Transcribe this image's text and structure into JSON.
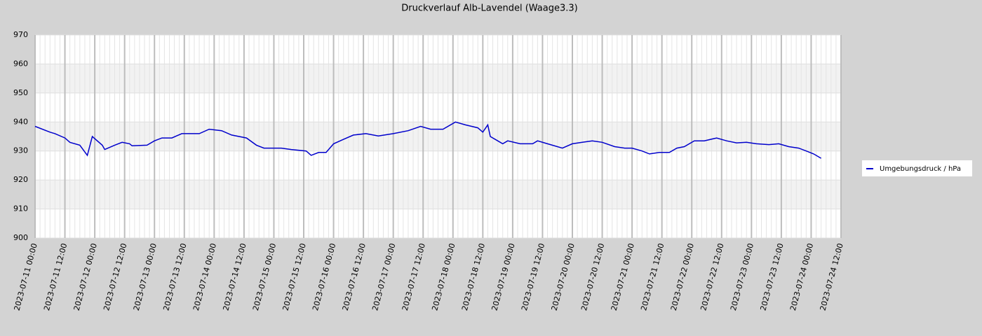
{
  "chart_data": {
    "type": "line",
    "title": "Druckverlauf Alb-Lavendel (Waage3.3)",
    "x": [
      "2023-07-11 00:00",
      "2023-07-11 06:00",
      "2023-07-11 08:00",
      "2023-07-11 12:00",
      "2023-07-11 14:00",
      "2023-07-11 18:00",
      "2023-07-11 21:00",
      "2023-07-11 23:00",
      "2023-07-12 03:00",
      "2023-07-12 04:00",
      "2023-07-12 08:00",
      "2023-07-12 11:00",
      "2023-07-12 14:00",
      "2023-07-12 15:00",
      "2023-07-12 21:00",
      "2023-07-13 00:00",
      "2023-07-13 03:00",
      "2023-07-13 07:00",
      "2023-07-13 11:00",
      "2023-07-13 15:00",
      "2023-07-13 18:00",
      "2023-07-13 22:00",
      "2023-07-14 03:00",
      "2023-07-14 07:00",
      "2023-07-14 13:00",
      "2023-07-14 17:00",
      "2023-07-14 20:00",
      "2023-07-15 00:00",
      "2023-07-15 03:00",
      "2023-07-15 07:00",
      "2023-07-15 13:00",
      "2023-07-15 15:00",
      "2023-07-15 18:00",
      "2023-07-15 21:00",
      "2023-07-16 00:00",
      "2023-07-16 04:00",
      "2023-07-16 08:00",
      "2023-07-16 13:00",
      "2023-07-16 18:00",
      "2023-07-17 00:00",
      "2023-07-17 06:00",
      "2023-07-17 11:00",
      "2023-07-17 15:00",
      "2023-07-17 20:00",
      "2023-07-18 01:00",
      "2023-07-18 05:00",
      "2023-07-18 10:00",
      "2023-07-18 12:00",
      "2023-07-18 14:00",
      "2023-07-18 15:00",
      "2023-07-18 18:00",
      "2023-07-18 20:00",
      "2023-07-18 22:00",
      "2023-07-19 03:00",
      "2023-07-19 08:00",
      "2023-07-19 10:00",
      "2023-07-19 14:00",
      "2023-07-19 20:00",
      "2023-07-20 00:00",
      "2023-07-20 04:00",
      "2023-07-20 08:00",
      "2023-07-20 12:00",
      "2023-07-20 17:00",
      "2023-07-20 21:00",
      "2023-07-21 00:00",
      "2023-07-21 04:00",
      "2023-07-21 07:00",
      "2023-07-21 11:00",
      "2023-07-21 15:00",
      "2023-07-21 18:00",
      "2023-07-21 21:00",
      "2023-07-22 01:00",
      "2023-07-22 05:00",
      "2023-07-22 10:00",
      "2023-07-22 14:00",
      "2023-07-22 18:00",
      "2023-07-22 22:00",
      "2023-07-23 02:00",
      "2023-07-23 07:00",
      "2023-07-23 11:00",
      "2023-07-23 15:00",
      "2023-07-23 19:00",
      "2023-07-23 22:00",
      "2023-07-24 01:00",
      "2023-07-24 04:00"
    ],
    "series": [
      {
        "name": "Umgebungsdruck / hPa",
        "color": "#0000cc",
        "values": [
          938.5,
          936.5,
          936,
          934.5,
          933,
          932,
          928.5,
          935,
          932,
          930.5,
          932,
          933,
          932.5,
          931.8,
          932,
          933.5,
          934.5,
          934.5,
          936,
          936,
          936,
          937.5,
          937,
          935.5,
          934.5,
          932,
          931,
          931,
          931,
          930.5,
          930,
          928.5,
          929.5,
          929.5,
          932.5,
          934,
          935.5,
          936,
          935.2,
          936,
          937,
          938.5,
          937.5,
          937.5,
          940,
          939,
          938,
          936.5,
          939,
          935,
          933.5,
          932.5,
          933.5,
          932.5,
          932.5,
          933.5,
          932.5,
          931,
          932.5,
          933,
          933.5,
          933,
          931.5,
          931,
          931,
          930,
          929,
          929.5,
          929.5,
          931,
          931.5,
          933.5,
          933.5,
          934.5,
          933.5,
          932.8,
          933,
          932.5,
          932.2,
          932.5,
          931.5,
          931,
          930,
          929,
          927.5
        ]
      }
    ],
    "xlim": [
      "2023-07-11 00:00",
      "2023-07-24 12:00"
    ],
    "xticks": [
      "2023-07-11 00:00",
      "2023-07-11 12:00",
      "2023-07-12 00:00",
      "2023-07-12 12:00",
      "2023-07-13 00:00",
      "2023-07-13 12:00",
      "2023-07-14 00:00",
      "2023-07-14 12:00",
      "2023-07-15 00:00",
      "2023-07-15 12:00",
      "2023-07-16 00:00",
      "2023-07-16 12:00",
      "2023-07-17 00:00",
      "2023-07-17 12:00",
      "2023-07-18 00:00",
      "2023-07-18 12:00",
      "2023-07-19 00:00",
      "2023-07-19 12:00",
      "2023-07-20 00:00",
      "2023-07-20 12:00",
      "2023-07-21 00:00",
      "2023-07-21 12:00",
      "2023-07-22 00:00",
      "2023-07-22 12:00",
      "2023-07-23 00:00",
      "2023-07-23 12:00",
      "2023-07-24 00:00",
      "2023-07-24 12:00"
    ],
    "ylim": [
      900,
      970
    ],
    "yticks": [
      900,
      910,
      920,
      930,
      940,
      950,
      960,
      970
    ],
    "grid": true,
    "legend": "right"
  }
}
